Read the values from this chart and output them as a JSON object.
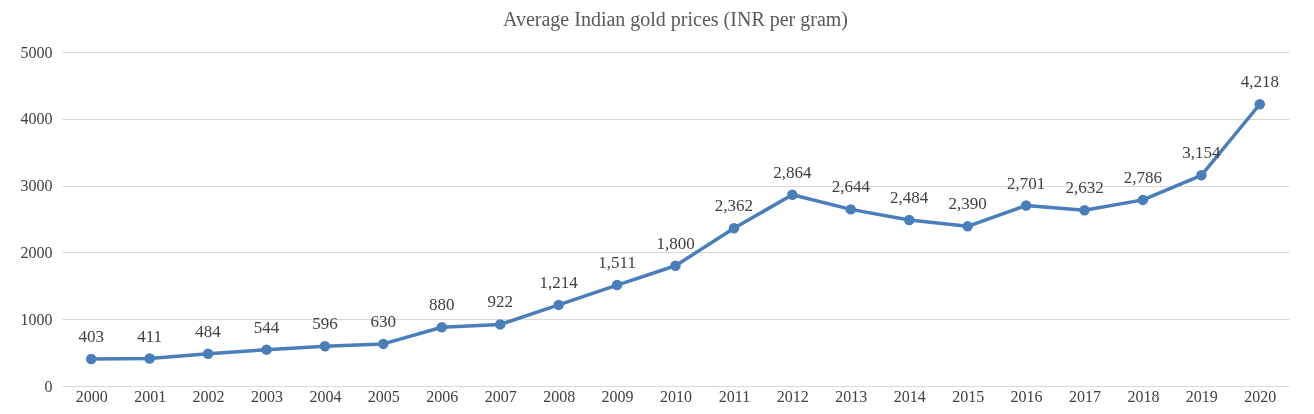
{
  "chart_data": {
    "type": "line",
    "title": "Average Indian gold prices (INR per gram)",
    "categories": [
      "2000",
      "2001",
      "2002",
      "2003",
      "2004",
      "2005",
      "2006",
      "2007",
      "2008",
      "2009",
      "2010",
      "2011",
      "2012",
      "2013",
      "2014",
      "2015",
      "2016",
      "2017",
      "2018",
      "2019",
      "2020"
    ],
    "series": [
      {
        "color": "#4a7ebb",
        "values": [
          403,
          411,
          484,
          544,
          596,
          630,
          880,
          922,
          1214,
          1511,
          1800,
          2362,
          2864,
          2644,
          2484,
          2390,
          2701,
          2632,
          2786,
          3154,
          4218
        ],
        "value_labels": [
          "403",
          "411",
          "484",
          "544",
          "596",
          "630",
          "880",
          "922",
          "1,214",
          "1,511",
          "1,800",
          "2,362",
          "2,864",
          "2,644",
          "2,484",
          "2,390",
          "2,701",
          "2,632",
          "2,786",
          "3,154",
          "4,218"
        ]
      }
    ],
    "ylim": [
      0,
      5000
    ],
    "yticks": [
      0,
      1000,
      2000,
      3000,
      4000,
      5000
    ],
    "grid": "y",
    "marker": "circle",
    "line_style": "solid"
  }
}
